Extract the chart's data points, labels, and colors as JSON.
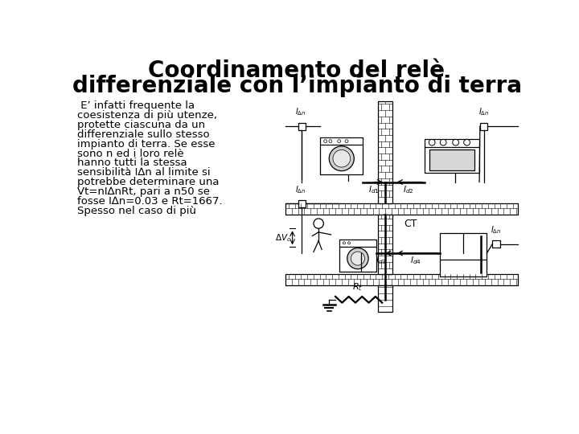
{
  "title_line1": "Coordinamento del relè",
  "title_line2": "differenziale con l’impianto di terra",
  "bg_color": "#ffffff",
  "title_color": "#000000",
  "text_color": "#000000",
  "title_fontsize": 20,
  "body_fontsize": 9.5,
  "body_lines": [
    " E’ infatti frequente la",
    "coesistenza di più utenze,",
    "protette ciascuna da un",
    "differenziale sullo stesso",
    "impianto di terra. Se esse",
    "sono n ed i loro relè",
    "hanno tutti la stessa",
    "sensibilità I∆n al limite si",
    "potrebbe determinare una",
    "Vt=nI∆nRt, pari a n50 se",
    "fosse I∆n=0.03 e Rt=1667.",
    "Spesso nel caso di più"
  ]
}
